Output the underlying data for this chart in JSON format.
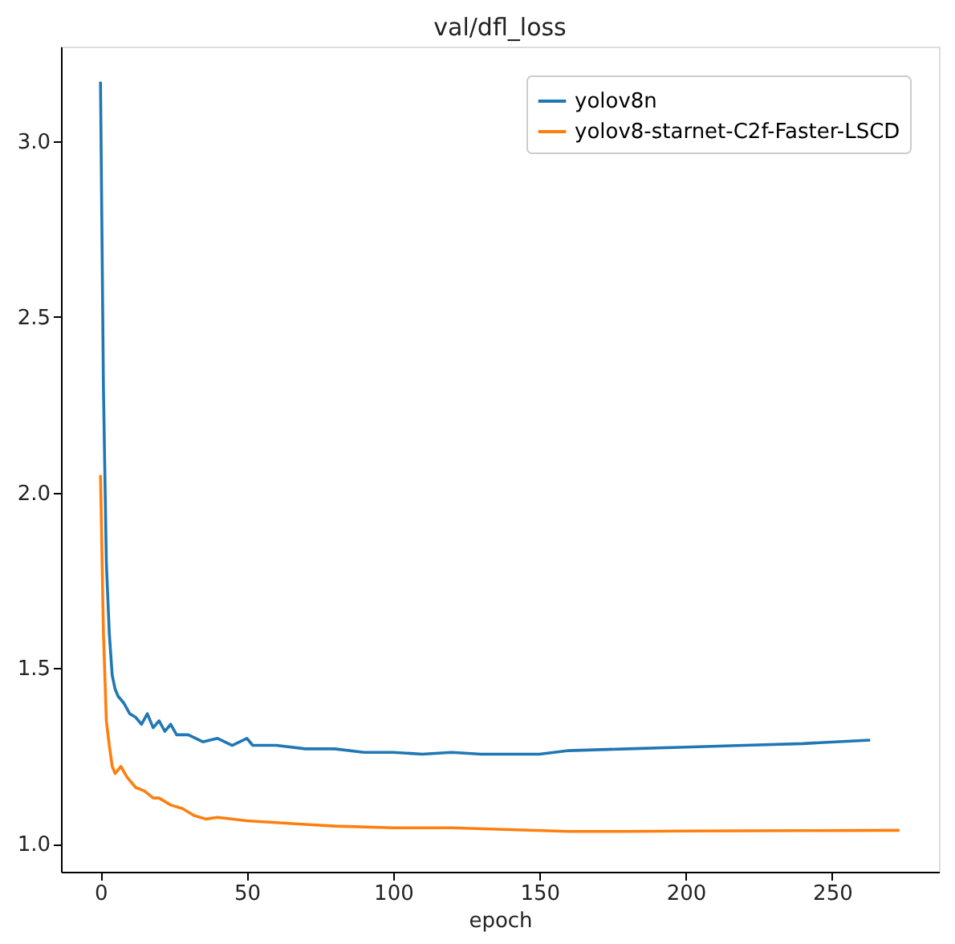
{
  "chart_data": {
    "type": "line",
    "title": "val/dfl_loss",
    "xlabel": "epoch",
    "xlim": [
      -13.5,
      286.5
    ],
    "ylim": [
      0.92,
      3.27
    ],
    "xticks": [
      0,
      50,
      100,
      150,
      200,
      250
    ],
    "yticks": [
      {
        "value": 1,
        "label": "1.0"
      },
      1.5,
      {
        "value": 2,
        "label": "2.0"
      },
      2.5,
      {
        "value": 3,
        "label": "3.0"
      }
    ],
    "legend": "top right",
    "grid": false,
    "line_style": "solid",
    "marker": "none",
    "series": [
      {
        "name": "yolov8n",
        "color": "#1f77b4",
        "x": [
          0,
          1,
          2,
          3,
          4,
          5,
          6,
          8,
          10,
          12,
          14,
          16,
          18,
          20,
          22,
          24,
          26,
          30,
          35,
          40,
          45,
          50,
          52,
          60,
          70,
          80,
          90,
          100,
          110,
          120,
          130,
          140,
          150,
          160,
          180,
          200,
          220,
          240,
          263
        ],
        "values": [
          3.17,
          2.3,
          1.8,
          1.6,
          1.48,
          1.44,
          1.42,
          1.4,
          1.37,
          1.36,
          1.34,
          1.37,
          1.33,
          1.35,
          1.32,
          1.34,
          1.31,
          1.31,
          1.29,
          1.3,
          1.28,
          1.3,
          1.28,
          1.28,
          1.27,
          1.27,
          1.26,
          1.26,
          1.255,
          1.26,
          1.255,
          1.255,
          1.255,
          1.265,
          1.27,
          1.275,
          1.28,
          1.285,
          1.295
        ]
      },
      {
        "name": "yolov8-starnet-C2f-Faster-LSCD",
        "color": "#ff7f0e",
        "x": [
          0,
          1,
          2,
          3,
          4,
          5,
          7,
          9,
          12,
          15,
          18,
          20,
          24,
          28,
          32,
          36,
          40,
          50,
          60,
          70,
          80,
          100,
          120,
          140,
          160,
          180,
          200,
          240,
          273
        ],
        "values": [
          2.05,
          1.6,
          1.35,
          1.28,
          1.22,
          1.2,
          1.22,
          1.19,
          1.16,
          1.15,
          1.13,
          1.13,
          1.11,
          1.1,
          1.08,
          1.07,
          1.075,
          1.065,
          1.06,
          1.055,
          1.05,
          1.045,
          1.045,
          1.04,
          1.035,
          1.035,
          1.036,
          1.037,
          1.038
        ]
      }
    ]
  }
}
